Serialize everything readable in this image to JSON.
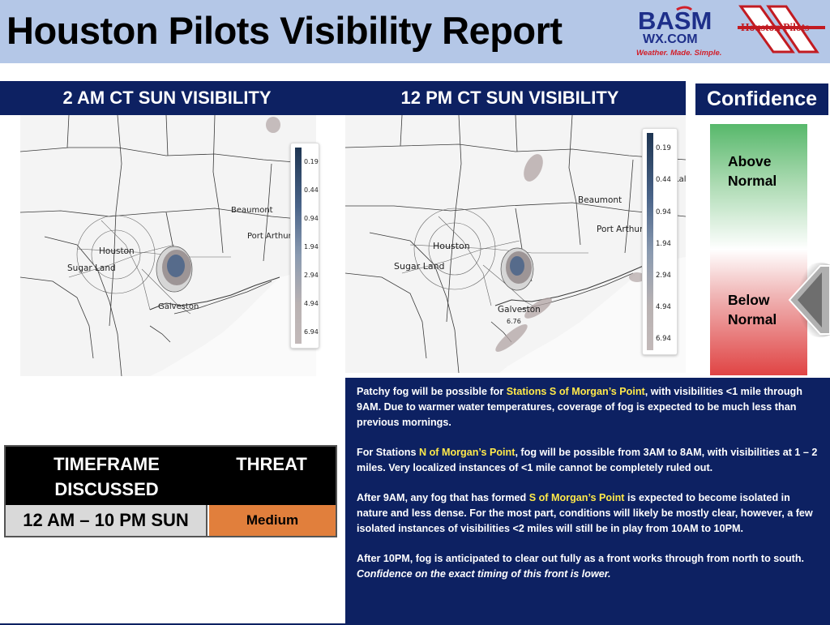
{
  "header": {
    "title": "Houston Pilots Visibility Report",
    "logo_basm_main": "BASM",
    "logo_basm_domain": "WX.COM",
    "logo_basm_tagline": "Weather. Made. Simple.",
    "logo_hp_text": "Houston Pilots"
  },
  "panels": {
    "left_title": "2 AM CT SUN VISIBILITY",
    "right_title": "12 PM CT SUN VISIBILITY",
    "confidence_title": "Confidence"
  },
  "maps": {
    "left": {
      "labels": [
        "Beaumont",
        "Port Arthur",
        "Houston",
        "Sugar Land",
        "Galveston"
      ],
      "legend_ticks": [
        "0.19",
        "0.44",
        "0.94",
        "1.94",
        "2.94",
        "4.94",
        "6.94"
      ]
    },
    "right": {
      "labels": [
        "Beaumont",
        "Port Arthur",
        "Houston",
        "Sugar Land",
        "Galveston",
        "6.76",
        "Lal"
      ],
      "legend_ticks": [
        "0.19",
        "0.44",
        "0.94",
        "1.94",
        "2.94",
        "4.94",
        "6.94"
      ]
    }
  },
  "confidence": {
    "above_line1": "Above",
    "above_line2": "Normal",
    "below_line1": "Below",
    "below_line2": "Normal",
    "indicator": "Below Normal"
  },
  "table": {
    "header_timeframe_line1": "TIMEFRAME",
    "header_timeframe_line2": "DISCUSSED",
    "header_threat": "THREAT",
    "timeframe_value": "12 AM – 10 PM SUN",
    "threat_value": "Medium",
    "threat_color": "#e17f3c"
  },
  "discussion": {
    "p1_a": "Patchy fog will be possible for ",
    "p1_hl": "Stations S of Morgan’s Point",
    "p1_b": ", with visibilities <1 mile through 9AM. Due to warmer water temperatures, coverage of fog is expected to be much less than previous mornings.",
    "p2_a": "For Stations ",
    "p2_hl": "N of Morgan’s Point",
    "p2_b": ", fog will be possible from 3AM to 8AM, with visibilities at 1 – 2 miles. Very localized instances of <1 mile cannot be completely ruled out.",
    "p3_a": "After 9AM, any fog that has formed ",
    "p3_hl": "S of Morgan’s Point",
    "p3_b": " is expected to become isolated in nature and less dense. For the most part, conditions will likely be mostly clear, however, a few isolated instances of visibilities <2 miles will still be in play from 10AM to 10PM.",
    "p4_a": "After 10PM, fog is anticipated to clear out fully as a front works through from north to south. ",
    "p4_it": "Confidence on the exact timing of this front is lower."
  },
  "colors": {
    "navy": "#0d2162",
    "header_bg": "#b4c7e7",
    "highlight": "#ffe94a",
    "confidence_top": "#57b86b",
    "confidence_bottom": "#e04444"
  }
}
